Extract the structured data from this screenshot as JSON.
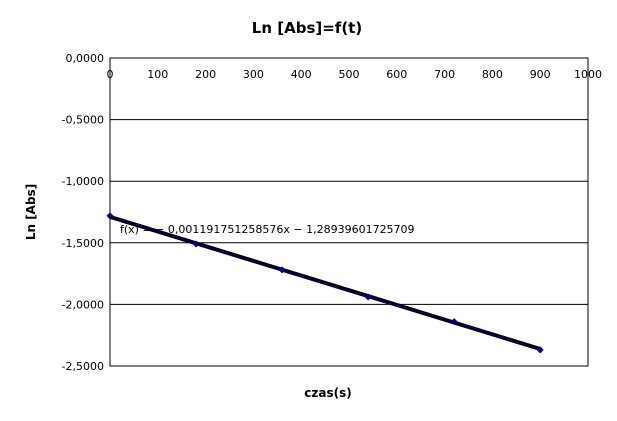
{
  "chart_data": {
    "type": "scatter",
    "title": "Ln [Abs]=f(t)",
    "xlabel": "czas(s)",
    "ylabel": "Ln [Abs]",
    "xlim": [
      0,
      1000
    ],
    "ylim": [
      -2.5,
      0
    ],
    "x_ticks": [
      "0",
      "100",
      "200",
      "300",
      "400",
      "500",
      "600",
      "700",
      "800",
      "900",
      "1000"
    ],
    "x_tick_values": [
      0,
      100,
      200,
      300,
      400,
      500,
      600,
      700,
      800,
      900,
      1000
    ],
    "y_ticks": [
      "0,0000",
      "-0,5000",
      "-1,0000",
      "-1,5000",
      "-2,0000",
      "-2,5000"
    ],
    "y_tick_values": [
      0,
      -0.5,
      -1.0,
      -1.5,
      -2.0,
      -2.5
    ],
    "x_axis_position": "top",
    "grid": "horizontal",
    "legend": "none",
    "series": [
      {
        "color": "#000080",
        "x": [
          0,
          180,
          360,
          540,
          720,
          900
        ],
        "y": [
          -1.28,
          -1.51,
          -1.72,
          -1.94,
          -2.14,
          -2.37
        ]
      }
    ],
    "trendline": {
      "equation": "f(x) = − 0,001191751258576x − 1,28939601725709",
      "slope": -0.001191751258576,
      "intercept": -1.28939601725709,
      "x_range": [
        0,
        900
      ],
      "color": "#000000"
    }
  }
}
